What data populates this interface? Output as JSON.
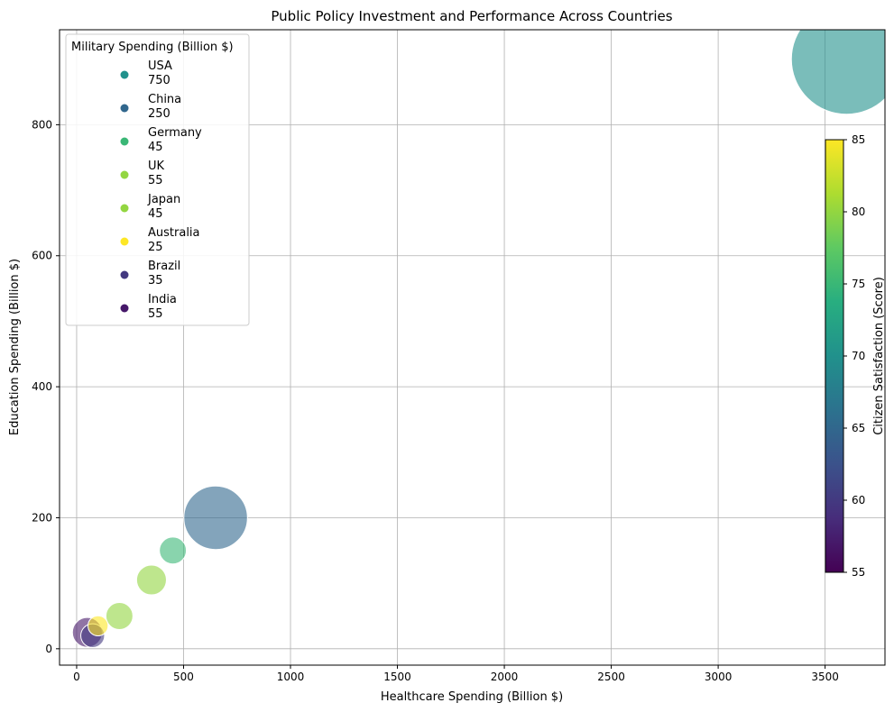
{
  "chart_data": {
    "type": "scatter",
    "title": "Public Policy Investment and Performance Across Countries",
    "xlabel": "Healthcare Spending (Billion $)",
    "ylabel": "Education Spending (Billion $)",
    "xlim": [
      -80,
      3780
    ],
    "ylim": [
      -25,
      945
    ],
    "x_ticks": [
      0,
      500,
      1000,
      1500,
      2000,
      2500,
      3000,
      3500
    ],
    "y_ticks": [
      0,
      200,
      400,
      600,
      800
    ],
    "grid": true,
    "size_variable": "Military Spending (Billion $)",
    "color_variable": "Citizen Satisfaction (Score)",
    "colormap": "viridis",
    "colorbar": {
      "label": "Citizen Satisfaction (Score)",
      "range": [
        55,
        85
      ],
      "ticks": [
        55,
        60,
        65,
        70,
        75,
        80,
        85
      ]
    },
    "legend": {
      "title": "Military Spending (Billion $)",
      "placement": "upper-left"
    },
    "points": [
      {
        "country": "USA",
        "x": 3600,
        "y": 900,
        "military": 750,
        "satisfaction": 70
      },
      {
        "country": "China",
        "x": 650,
        "y": 200,
        "military": 250,
        "satisfaction": 65
      },
      {
        "country": "Germany",
        "x": 450,
        "y": 150,
        "military": 45,
        "satisfaction": 75
      },
      {
        "country": "UK",
        "x": 350,
        "y": 105,
        "military": 55,
        "satisfaction": 80
      },
      {
        "country": "Japan",
        "x": 200,
        "y": 50,
        "military": 45,
        "satisfaction": 80
      },
      {
        "country": "Australia",
        "x": 100,
        "y": 35,
        "military": 25,
        "satisfaction": 85
      },
      {
        "country": "Brazil",
        "x": 75,
        "y": 20,
        "military": 35,
        "satisfaction": 60
      },
      {
        "country": "India",
        "x": 50,
        "y": 25,
        "military": 55,
        "satisfaction": 57
      }
    ]
  }
}
